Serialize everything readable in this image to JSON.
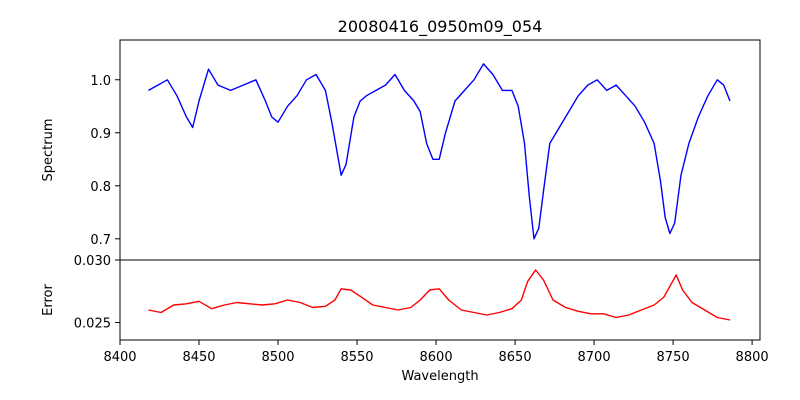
{
  "chart_data": {
    "type": "line",
    "title": "20080416_0950m09_054",
    "grid": false,
    "xlabel": "Wavelength",
    "x_ticks": [
      8400,
      8450,
      8500,
      8550,
      8600,
      8650,
      8700,
      8750,
      8800
    ],
    "xlim": [
      8400,
      8805
    ],
    "x_range": [
      8418,
      8786
    ],
    "panels": [
      {
        "name": "spectrum",
        "ylabel": "Spectrum",
        "ylim": [
          0.66,
          1.075
        ],
        "y_ticks": [
          0.7,
          0.8,
          0.9,
          1.0
        ],
        "y_tick_labels": [
          "0.7",
          "0.8",
          "0.9",
          "1.0"
        ],
        "series": [
          {
            "color": "#0000ff",
            "points": [
              [
                8418,
                0.98
              ],
              [
                8424,
                0.99
              ],
              [
                8430,
                1.0
              ],
              [
                8436,
                0.97
              ],
              [
                8442,
                0.93
              ],
              [
                8446,
                0.91
              ],
              [
                8450,
                0.96
              ],
              [
                8456,
                1.02
              ],
              [
                8462,
                0.99
              ],
              [
                8470,
                0.98
              ],
              [
                8478,
                0.99
              ],
              [
                8486,
                1.0
              ],
              [
                8492,
                0.96
              ],
              [
                8496,
                0.93
              ],
              [
                8500,
                0.92
              ],
              [
                8506,
                0.95
              ],
              [
                8512,
                0.97
              ],
              [
                8518,
                1.0
              ],
              [
                8524,
                1.01
              ],
              [
                8530,
                0.98
              ],
              [
                8534,
                0.92
              ],
              [
                8537,
                0.87
              ],
              [
                8540,
                0.82
              ],
              [
                8543,
                0.84
              ],
              [
                8548,
                0.93
              ],
              [
                8552,
                0.96
              ],
              [
                8556,
                0.97
              ],
              [
                8562,
                0.98
              ],
              [
                8568,
                0.99
              ],
              [
                8574,
                1.01
              ],
              [
                8580,
                0.98
              ],
              [
                8586,
                0.96
              ],
              [
                8590,
                0.94
              ],
              [
                8594,
                0.88
              ],
              [
                8598,
                0.85
              ],
              [
                8602,
                0.85
              ],
              [
                8606,
                0.9
              ],
              [
                8612,
                0.96
              ],
              [
                8618,
                0.98
              ],
              [
                8624,
                1.0
              ],
              [
                8630,
                1.03
              ],
              [
                8636,
                1.01
              ],
              [
                8642,
                0.98
              ],
              [
                8648,
                0.98
              ],
              [
                8652,
                0.95
              ],
              [
                8656,
                0.88
              ],
              [
                8659,
                0.78
              ],
              [
                8662,
                0.7
              ],
              [
                8665,
                0.72
              ],
              [
                8668,
                0.79
              ],
              [
                8672,
                0.88
              ],
              [
                8678,
                0.91
              ],
              [
                8684,
                0.94
              ],
              [
                8690,
                0.97
              ],
              [
                8696,
                0.99
              ],
              [
                8702,
                1.0
              ],
              [
                8708,
                0.98
              ],
              [
                8714,
                0.99
              ],
              [
                8720,
                0.97
              ],
              [
                8726,
                0.95
              ],
              [
                8732,
                0.92
              ],
              [
                8738,
                0.88
              ],
              [
                8742,
                0.81
              ],
              [
                8745,
                0.74
              ],
              [
                8748,
                0.71
              ],
              [
                8751,
                0.73
              ],
              [
                8755,
                0.82
              ],
              [
                8760,
                0.88
              ],
              [
                8766,
                0.93
              ],
              [
                8772,
                0.97
              ],
              [
                8778,
                1.0
              ],
              [
                8782,
                0.99
              ],
              [
                8786,
                0.96
              ]
            ]
          }
        ]
      },
      {
        "name": "error",
        "ylabel": "Error",
        "ylim": [
          0.0236,
          0.03
        ],
        "y_ticks": [
          0.025,
          0.03
        ],
        "y_tick_labels": [
          "0.025",
          "0.030"
        ],
        "series": [
          {
            "color": "#ff0000",
            "points": [
              [
                8418,
                0.026
              ],
              [
                8426,
                0.0258
              ],
              [
                8434,
                0.0264
              ],
              [
                8442,
                0.0265
              ],
              [
                8450,
                0.0267
              ],
              [
                8458,
                0.0261
              ],
              [
                8466,
                0.0264
              ],
              [
                8474,
                0.0266
              ],
              [
                8482,
                0.0265
              ],
              [
                8490,
                0.0264
              ],
              [
                8498,
                0.0265
              ],
              [
                8506,
                0.0268
              ],
              [
                8514,
                0.0266
              ],
              [
                8522,
                0.0262
              ],
              [
                8530,
                0.0263
              ],
              [
                8536,
                0.0268
              ],
              [
                8540,
                0.0277
              ],
              [
                8546,
                0.0276
              ],
              [
                8552,
                0.0271
              ],
              [
                8560,
                0.0264
              ],
              [
                8568,
                0.0262
              ],
              [
                8576,
                0.026
              ],
              [
                8584,
                0.0262
              ],
              [
                8590,
                0.0268
              ],
              [
                8596,
                0.0276
              ],
              [
                8602,
                0.0277
              ],
              [
                8608,
                0.0268
              ],
              [
                8616,
                0.026
              ],
              [
                8624,
                0.0258
              ],
              [
                8632,
                0.0256
              ],
              [
                8640,
                0.0258
              ],
              [
                8648,
                0.0261
              ],
              [
                8654,
                0.0268
              ],
              [
                8658,
                0.0283
              ],
              [
                8663,
                0.0292
              ],
              [
                8668,
                0.0284
              ],
              [
                8674,
                0.0268
              ],
              [
                8682,
                0.0262
              ],
              [
                8690,
                0.0259
              ],
              [
                8698,
                0.0257
              ],
              [
                8706,
                0.0257
              ],
              [
                8714,
                0.0254
              ],
              [
                8722,
                0.0256
              ],
              [
                8730,
                0.026
              ],
              [
                8738,
                0.0264
              ],
              [
                8744,
                0.027
              ],
              [
                8748,
                0.0279
              ],
              [
                8752,
                0.0288
              ],
              [
                8756,
                0.0276
              ],
              [
                8762,
                0.0266
              ],
              [
                8770,
                0.026
              ],
              [
                8778,
                0.0254
              ],
              [
                8786,
                0.0252
              ]
            ]
          }
        ]
      }
    ]
  }
}
